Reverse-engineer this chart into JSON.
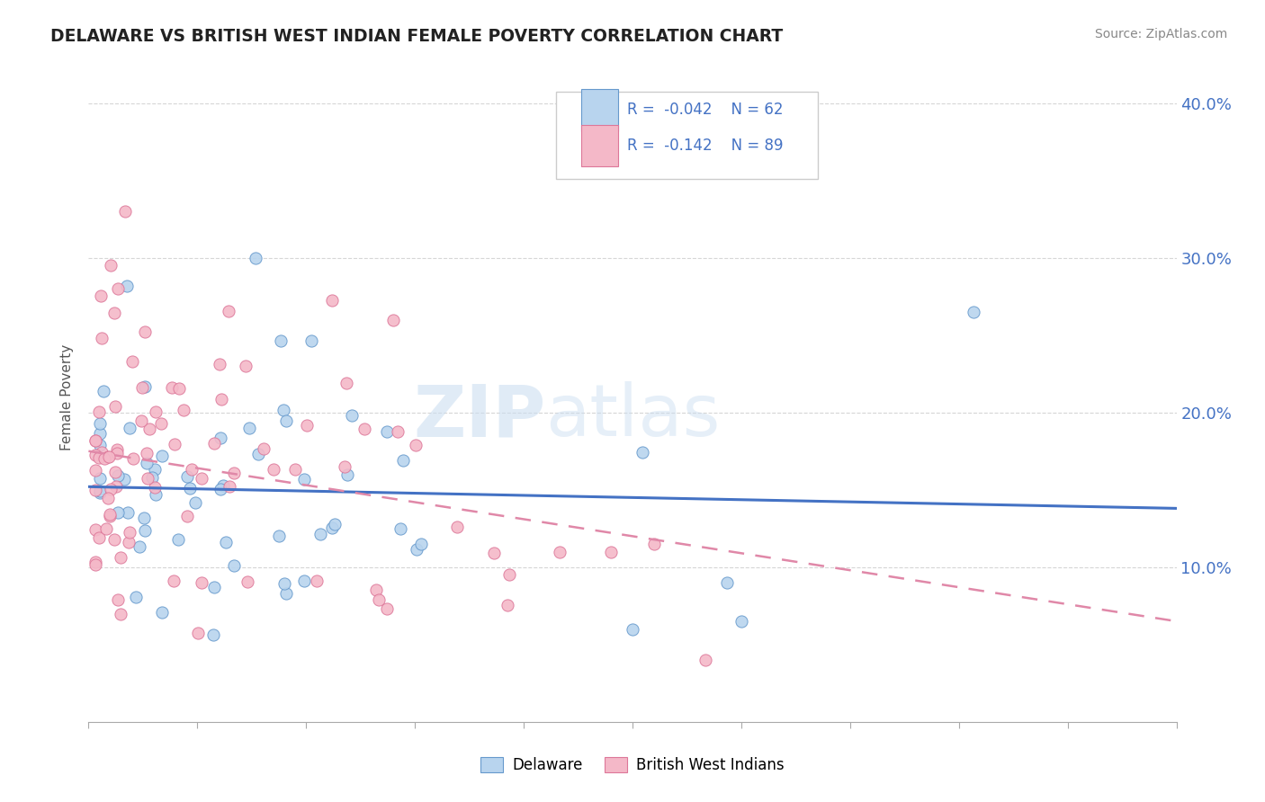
{
  "title": "DELAWARE VS BRITISH WEST INDIAN FEMALE POVERTY CORRELATION CHART",
  "source": "Source: ZipAtlas.com",
  "ylabel": "Female Poverty",
  "xlim": [
    0.0,
    15.0
  ],
  "ylim": [
    0.0,
    42.0
  ],
  "yticks": [
    10.0,
    20.0,
    30.0,
    40.0
  ],
  "color_blue_fill": "#b8d4ee",
  "color_blue_edge": "#6699cc",
  "color_pink_fill": "#f4b8c8",
  "color_pink_edge": "#dd7799",
  "trend_blue": "#4472c4",
  "trend_pink": "#e088a8",
  "del_trend_x0": 0.0,
  "del_trend_y0": 15.2,
  "del_trend_x1": 15.0,
  "del_trend_y1": 13.8,
  "bwi_trend_x0": 0.0,
  "bwi_trend_y0": 17.5,
  "bwi_trend_x1": 15.0,
  "bwi_trend_y1": 6.5,
  "watermark_zip": "ZIP",
  "watermark_atlas": "atlas",
  "legend_r1": "R =  -0.042",
  "legend_n1": "N = 62",
  "legend_r2": "R =  -0.142",
  "legend_n2": "N = 89"
}
